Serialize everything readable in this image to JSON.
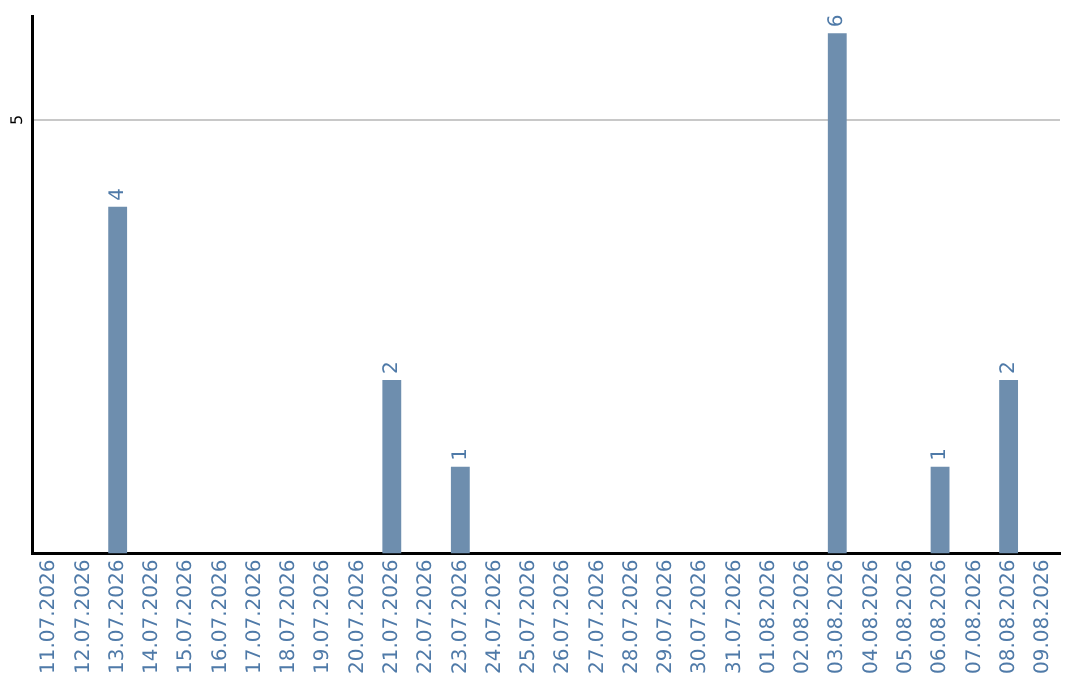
{
  "chart_data": {
    "type": "bar",
    "categories": [
      "11.07.2026",
      "12.07.2026",
      "13.07.2026",
      "14.07.2026",
      "15.07.2026",
      "16.07.2026",
      "17.07.2026",
      "18.07.2026",
      "19.07.2026",
      "20.07.2026",
      "21.07.2026",
      "22.07.2026",
      "23.07.2026",
      "24.07.2026",
      "25.07.2026",
      "26.07.2026",
      "27.07.2026",
      "28.07.2026",
      "29.07.2026",
      "30.07.2026",
      "31.07.2026",
      "01.08.2026",
      "02.08.2026",
      "03.08.2026",
      "04.08.2026",
      "05.08.2026",
      "06.08.2026",
      "07.08.2026",
      "08.08.2026",
      "09.08.2026"
    ],
    "values": [
      0,
      0,
      4,
      0,
      0,
      0,
      0,
      0,
      0,
      0,
      2,
      0,
      1,
      0,
      0,
      0,
      0,
      0,
      0,
      0,
      0,
      0,
      0,
      6,
      0,
      0,
      1,
      0,
      2,
      0
    ],
    "value_labels": [
      null,
      null,
      "4",
      null,
      null,
      null,
      null,
      null,
      null,
      null,
      "2",
      null,
      "1",
      null,
      null,
      null,
      null,
      null,
      null,
      null,
      null,
      null,
      null,
      "6",
      null,
      null,
      "1",
      null,
      "2",
      null
    ],
    "color": "#6e8eae",
    "ylim": [
      0,
      6.2
    ],
    "yticks": [
      5
    ],
    "grid": "y",
    "legend": false
  }
}
